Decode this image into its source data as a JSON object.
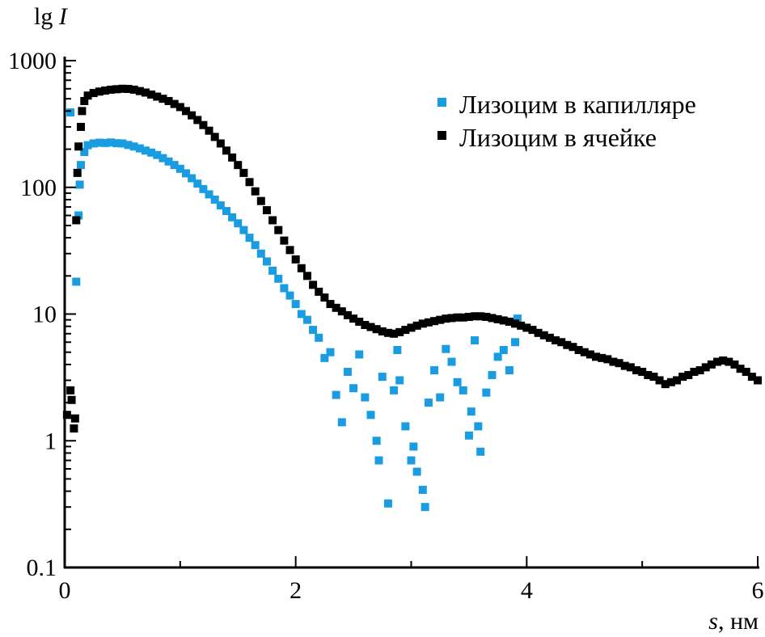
{
  "chart_data": {
    "type": "scatter",
    "title": "",
    "xlabel_var": "s",
    "xlabel_unit": ", нм",
    "ylabel_prefix": "lg ",
    "ylabel_var": "I",
    "xlim": [
      0,
      6
    ],
    "ylim": [
      0.1,
      1000
    ],
    "yscale": "log",
    "grid": false,
    "legend_position": "top-right",
    "x_ticks": [
      0,
      2,
      4,
      6
    ],
    "x_tick_labels": [
      "0",
      "2",
      "4",
      "6"
    ],
    "x_minor_ticks": [
      1,
      3,
      5
    ],
    "y_ticks": [
      0.1,
      1,
      10,
      100,
      1000
    ],
    "y_tick_labels": [
      "0.1",
      "1",
      "10",
      "100",
      "1000"
    ],
    "series": [
      {
        "name": "Лизоцим в капилляре",
        "color": "#1a9ce0",
        "points": [
          [
            0.05,
            390
          ],
          [
            0.1,
            18
          ],
          [
            0.12,
            60
          ],
          [
            0.13,
            105
          ],
          [
            0.14,
            150
          ],
          [
            0.17,
            190
          ],
          [
            0.2,
            215
          ],
          [
            0.25,
            222
          ],
          [
            0.3,
            225
          ],
          [
            0.35,
            224
          ],
          [
            0.4,
            226
          ],
          [
            0.45,
            223
          ],
          [
            0.5,
            222
          ],
          [
            0.55,
            216
          ],
          [
            0.6,
            210
          ],
          [
            0.65,
            203
          ],
          [
            0.7,
            195
          ],
          [
            0.75,
            188
          ],
          [
            0.8,
            180
          ],
          [
            0.85,
            170
          ],
          [
            0.9,
            160
          ],
          [
            0.95,
            150
          ],
          [
            1.0,
            140
          ],
          [
            1.05,
            129
          ],
          [
            1.1,
            118
          ],
          [
            1.15,
            107
          ],
          [
            1.2,
            97
          ],
          [
            1.25,
            88
          ],
          [
            1.3,
            80
          ],
          [
            1.35,
            72
          ],
          [
            1.4,
            65
          ],
          [
            1.45,
            58
          ],
          [
            1.5,
            52
          ],
          [
            1.55,
            46
          ],
          [
            1.6,
            40
          ],
          [
            1.65,
            35
          ],
          [
            1.7,
            30
          ],
          [
            1.75,
            26
          ],
          [
            1.8,
            22
          ],
          [
            1.85,
            19
          ],
          [
            1.9,
            16
          ],
          [
            1.95,
            14
          ],
          [
            2.0,
            12
          ],
          [
            2.05,
            10
          ],
          [
            2.1,
            9
          ],
          [
            2.15,
            7.5
          ],
          [
            2.2,
            6.5
          ],
          [
            2.25,
            4.5
          ],
          [
            2.3,
            5.0
          ],
          [
            2.35,
            2.3
          ],
          [
            2.4,
            1.4
          ],
          [
            2.45,
            3.5
          ],
          [
            2.5,
            2.6
          ],
          [
            2.55,
            4.8
          ],
          [
            2.6,
            2.2
          ],
          [
            2.65,
            1.6
          ],
          [
            2.7,
            1.0
          ],
          [
            2.72,
            0.7
          ],
          [
            2.75,
            3.2
          ],
          [
            2.8,
            0.32
          ],
          [
            2.85,
            2.5
          ],
          [
            2.88,
            5.2
          ],
          [
            2.9,
            3.0
          ],
          [
            2.95,
            1.3
          ],
          [
            3.0,
            0.7
          ],
          [
            3.02,
            0.9
          ],
          [
            3.05,
            0.57
          ],
          [
            3.1,
            0.41
          ],
          [
            3.12,
            0.3
          ],
          [
            3.15,
            2.0
          ],
          [
            3.2,
            3.6
          ],
          [
            3.25,
            2.2
          ],
          [
            3.3,
            5.3
          ],
          [
            3.35,
            4.2
          ],
          [
            3.4,
            2.9
          ],
          [
            3.45,
            2.5
          ],
          [
            3.5,
            1.1
          ],
          [
            3.52,
            1.7
          ],
          [
            3.55,
            6.2
          ],
          [
            3.58,
            1.3
          ],
          [
            3.6,
            0.82
          ],
          [
            3.65,
            2.4
          ],
          [
            3.7,
            3.3
          ],
          [
            3.75,
            4.6
          ],
          [
            3.8,
            5.2
          ],
          [
            3.85,
            3.6
          ],
          [
            3.9,
            6.0
          ],
          [
            3.92,
            9.2
          ]
        ]
      },
      {
        "name": "Лизоцим в ячейке",
        "color": "#000000",
        "points": [
          [
            0.02,
            1.6
          ],
          [
            0.05,
            2.5
          ],
          [
            0.06,
            2.1
          ],
          [
            0.08,
            1.25
          ],
          [
            0.09,
            1.5
          ],
          [
            0.1,
            55
          ],
          [
            0.11,
            130
          ],
          [
            0.12,
            210
          ],
          [
            0.14,
            300
          ],
          [
            0.15,
            400
          ],
          [
            0.17,
            480
          ],
          [
            0.2,
            530
          ],
          [
            0.25,
            555
          ],
          [
            0.3,
            570
          ],
          [
            0.35,
            580
          ],
          [
            0.4,
            590
          ],
          [
            0.45,
            595
          ],
          [
            0.5,
            600
          ],
          [
            0.55,
            598
          ],
          [
            0.6,
            590
          ],
          [
            0.65,
            575
          ],
          [
            0.7,
            560
          ],
          [
            0.75,
            540
          ],
          [
            0.8,
            520
          ],
          [
            0.85,
            500
          ],
          [
            0.9,
            480
          ],
          [
            0.95,
            455
          ],
          [
            1.0,
            430
          ],
          [
            1.05,
            400
          ],
          [
            1.1,
            370
          ],
          [
            1.15,
            340
          ],
          [
            1.2,
            310
          ],
          [
            1.25,
            280
          ],
          [
            1.3,
            250
          ],
          [
            1.35,
            222
          ],
          [
            1.4,
            195
          ],
          [
            1.45,
            172
          ],
          [
            1.5,
            150
          ],
          [
            1.55,
            130
          ],
          [
            1.6,
            110
          ],
          [
            1.65,
            93
          ],
          [
            1.7,
            78
          ],
          [
            1.75,
            66
          ],
          [
            1.8,
            55
          ],
          [
            1.85,
            46
          ],
          [
            1.9,
            38
          ],
          [
            1.95,
            32
          ],
          [
            2.0,
            27
          ],
          [
            2.05,
            23
          ],
          [
            2.1,
            20
          ],
          [
            2.15,
            17
          ],
          [
            2.2,
            15
          ],
          [
            2.25,
            13.5
          ],
          [
            2.3,
            12
          ],
          [
            2.35,
            11.2
          ],
          [
            2.4,
            10.5
          ],
          [
            2.45,
            9.8
          ],
          [
            2.5,
            9.2
          ],
          [
            2.55,
            8.7
          ],
          [
            2.6,
            8.2
          ],
          [
            2.65,
            7.9
          ],
          [
            2.7,
            7.6
          ],
          [
            2.75,
            7.3
          ],
          [
            2.8,
            7.1
          ],
          [
            2.85,
            7.0
          ],
          [
            2.9,
            7.2
          ],
          [
            2.95,
            7.5
          ],
          [
            3.0,
            7.8
          ],
          [
            3.05,
            8.1
          ],
          [
            3.1,
            8.4
          ],
          [
            3.15,
            8.6
          ],
          [
            3.2,
            8.8
          ],
          [
            3.25,
            9.0
          ],
          [
            3.3,
            9.2
          ],
          [
            3.35,
            9.3
          ],
          [
            3.4,
            9.4
          ],
          [
            3.45,
            9.4
          ],
          [
            3.5,
            9.5
          ],
          [
            3.55,
            9.6
          ],
          [
            3.6,
            9.6
          ],
          [
            3.65,
            9.5
          ],
          [
            3.7,
            9.3
          ],
          [
            3.75,
            9.1
          ],
          [
            3.8,
            8.9
          ],
          [
            3.85,
            8.7
          ],
          [
            3.9,
            8.4
          ],
          [
            3.95,
            8.1
          ],
          [
            4.0,
            7.8
          ],
          [
            4.05,
            7.5
          ],
          [
            4.1,
            7.1
          ],
          [
            4.15,
            6.8
          ],
          [
            4.2,
            6.5
          ],
          [
            4.25,
            6.2
          ],
          [
            4.3,
            6.0
          ],
          [
            4.35,
            5.7
          ],
          [
            4.4,
            5.5
          ],
          [
            4.45,
            5.2
          ],
          [
            4.5,
            5.0
          ],
          [
            4.55,
            4.8
          ],
          [
            4.6,
            4.6
          ],
          [
            4.65,
            4.5
          ],
          [
            4.7,
            4.4
          ],
          [
            4.75,
            4.2
          ],
          [
            4.8,
            4.1
          ],
          [
            4.85,
            3.9
          ],
          [
            4.9,
            3.8
          ],
          [
            4.95,
            3.6
          ],
          [
            5.0,
            3.5
          ],
          [
            5.05,
            3.3
          ],
          [
            5.1,
            3.2
          ],
          [
            5.15,
            3.0
          ],
          [
            5.2,
            2.8
          ],
          [
            5.25,
            2.9
          ],
          [
            5.3,
            3.0
          ],
          [
            5.35,
            3.2
          ],
          [
            5.4,
            3.3
          ],
          [
            5.45,
            3.5
          ],
          [
            5.5,
            3.6
          ],
          [
            5.55,
            3.8
          ],
          [
            5.6,
            4.0
          ],
          [
            5.65,
            4.2
          ],
          [
            5.7,
            4.3
          ],
          [
            5.75,
            4.2
          ],
          [
            5.8,
            4.0
          ],
          [
            5.85,
            3.7
          ],
          [
            5.9,
            3.5
          ],
          [
            5.95,
            3.2
          ],
          [
            6.0,
            3.0
          ]
        ]
      }
    ]
  }
}
